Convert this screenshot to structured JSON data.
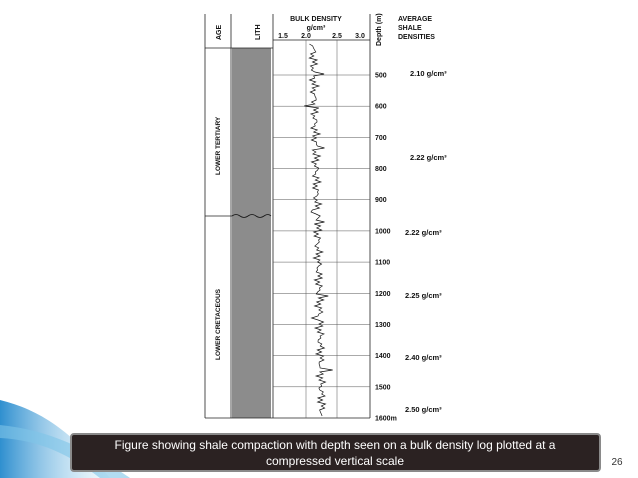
{
  "figure": {
    "header": {
      "age": "AGE",
      "lith": "LITH",
      "bulk_density": "BULK DENSITY",
      "unit": "g/cm³",
      "scale": [
        "1.5",
        "2.0",
        "2.5",
        "3.0"
      ],
      "depth": "Depth (m)",
      "average_shale_densities": [
        "AVERAGE",
        "SHALE",
        "DENSITIES"
      ]
    },
    "ages": [
      "LOWER TERTIARY",
      "LOWER CRETACEOUS"
    ],
    "depths": [
      "500",
      "600",
      "700",
      "800",
      "900",
      "1000",
      "1100",
      "1200",
      "1300",
      "1400",
      "1500",
      "1600m"
    ],
    "densities": [
      "2.10 g/cm³",
      "2.22 g/cm³",
      "2.22 g/cm³",
      "2.25 g/cm³",
      "2.40 g/cm³",
      "2.50 g/cm³"
    ]
  },
  "caption": [
    "Figure showing shale compaction with depth seen on a bulk density log plotted at a",
    "compressed vertical scale"
  ],
  "page_number": "26"
}
